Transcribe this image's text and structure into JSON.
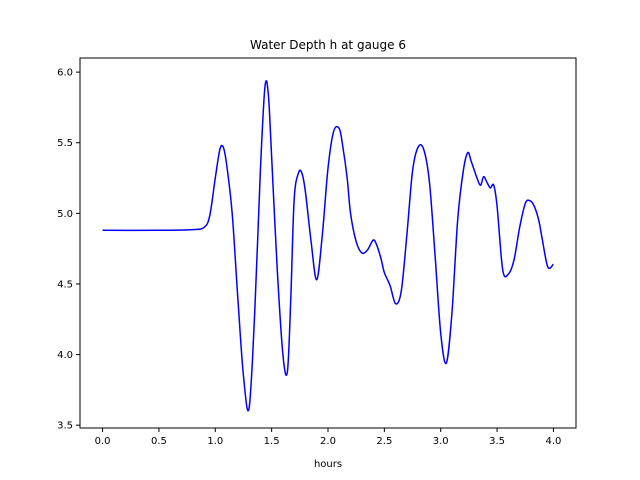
{
  "chart_data": {
    "type": "line",
    "title": "Water Depth h at gauge 6",
    "xlabel": "hours",
    "ylabel": "",
    "xlim": [
      -0.2,
      4.2
    ],
    "ylim": [
      3.48,
      6.1
    ],
    "grid": false,
    "legend": "none",
    "x_ticks": [
      0.0,
      0.5,
      1.0,
      1.5,
      2.0,
      2.5,
      3.0,
      3.5,
      4.0
    ],
    "x_tick_labels": [
      "0.0",
      "0.5",
      "1.0",
      "1.5",
      "2.0",
      "2.5",
      "3.0",
      "3.5",
      "4.0"
    ],
    "y_ticks": [
      3.5,
      4.0,
      4.5,
      5.0,
      5.5,
      6.0
    ],
    "y_tick_labels": [
      "3.5",
      "4.0",
      "4.5",
      "5.0",
      "5.5",
      "6.0"
    ],
    "series": [
      {
        "color": "#0000ff",
        "x": [
          0.0,
          0.5,
          0.8,
          0.9,
          0.95,
          1.0,
          1.04,
          1.07,
          1.1,
          1.15,
          1.2,
          1.25,
          1.3,
          1.35,
          1.4,
          1.44,
          1.47,
          1.5,
          1.55,
          1.6,
          1.64,
          1.67,
          1.7,
          1.74,
          1.77,
          1.8,
          1.85,
          1.9,
          1.95,
          2.0,
          2.05,
          2.1,
          2.13,
          2.17,
          2.2,
          2.25,
          2.3,
          2.35,
          2.4,
          2.43,
          2.47,
          2.5,
          2.55,
          2.6,
          2.65,
          2.7,
          2.75,
          2.8,
          2.85,
          2.9,
          2.95,
          3.0,
          3.05,
          3.1,
          3.15,
          3.2,
          3.24,
          3.27,
          3.3,
          3.35,
          3.38,
          3.41,
          3.44,
          3.47,
          3.5,
          3.55,
          3.6,
          3.65,
          3.7,
          3.75,
          3.79,
          3.83,
          3.87,
          3.9,
          3.95,
          4.0
        ],
        "y": [
          4.88,
          4.88,
          4.885,
          4.9,
          4.98,
          5.25,
          5.45,
          5.47,
          5.35,
          5.0,
          4.4,
          3.85,
          3.62,
          4.3,
          5.3,
          5.89,
          5.85,
          5.4,
          4.6,
          4.0,
          3.88,
          4.4,
          5.1,
          5.29,
          5.28,
          5.15,
          4.8,
          4.53,
          4.85,
          5.32,
          5.58,
          5.6,
          5.48,
          5.25,
          5.0,
          4.8,
          4.72,
          4.74,
          4.81,
          4.78,
          4.68,
          4.58,
          4.49,
          4.36,
          4.45,
          4.85,
          5.3,
          5.47,
          5.45,
          5.22,
          4.7,
          4.15,
          3.94,
          4.3,
          4.95,
          5.3,
          5.43,
          5.37,
          5.3,
          5.2,
          5.26,
          5.22,
          5.18,
          5.2,
          5.05,
          4.6,
          4.57,
          4.67,
          4.9,
          5.07,
          5.09,
          5.05,
          4.95,
          4.82,
          4.62,
          4.64
        ]
      }
    ]
  }
}
